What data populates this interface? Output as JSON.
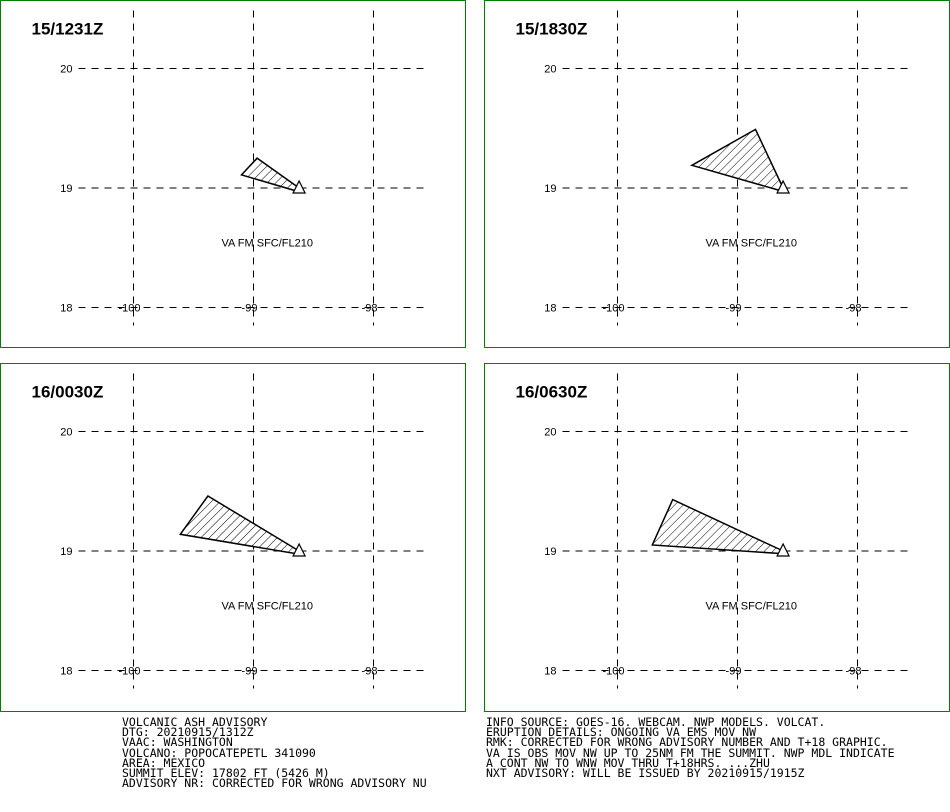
{
  "axes": {
    "lon_ticks": [
      -100,
      -99,
      -98
    ],
    "lat_ticks": [
      20,
      19,
      18
    ],
    "lon_labels": [
      "-100",
      "-99",
      "-98"
    ],
    "lat_labels": [
      "20",
      "19",
      "18"
    ]
  },
  "volcano_location": {
    "lat": 19.0,
    "lon": -98.62
  },
  "panels": [
    {
      "time": "15/1231Z",
      "va_label": "VA FM SFC/FL210",
      "polygon": [
        [
          -98.62,
          19.0
        ],
        [
          -98.97,
          19.25
        ],
        [
          -99.1,
          19.11
        ],
        [
          -98.66,
          18.98
        ]
      ]
    },
    {
      "time": "15/1830Z",
      "va_label": "VA FM SFC/FL210",
      "polygon": [
        [
          -98.62,
          19.0
        ],
        [
          -98.85,
          19.49
        ],
        [
          -99.38,
          19.19
        ],
        [
          -98.65,
          18.98
        ]
      ]
    },
    {
      "time": "16/0030Z",
      "va_label": "VA FM SFC/FL210",
      "polygon": [
        [
          -98.62,
          19.0
        ],
        [
          -99.38,
          19.46
        ],
        [
          -99.61,
          19.14
        ],
        [
          -98.66,
          18.98
        ]
      ]
    },
    {
      "time": "16/0630Z",
      "va_label": "VA FM SFC/FL210",
      "polygon": [
        [
          -98.62,
          19.0
        ],
        [
          -99.54,
          19.43
        ],
        [
          -99.71,
          19.05
        ],
        [
          -98.66,
          18.98
        ]
      ]
    }
  ],
  "advisory_left": [
    "VOLCANIC ASH ADVISORY",
    "DTG: 20210915/1312Z",
    "VAAC: WASHINGTON",
    "VOLCANO: POPOCATEPETL 341090",
    "AREA: MEXICO",
    "SUMMIT ELEV: 17802 FT (5426 M)",
    "ADVISORY NR: CORRECTED FOR WRONG ADVISORY NU"
  ],
  "advisory_right": [
    "INFO SOURCE: GOES-16. WEBCAM. NWP MODELS. VOLCAT.",
    "ERUPTION DETAILS: ONGOING VA EMS MOV NW",
    "RMK: CORRECTED FOR WRONG ADVISORY NUMBER AND T+18 GRAPHIC.",
    "VA IS OBS MOV NW UP TO 25NM FM THE SUMMIT. NWP MDL INDICATE",
    "A CONT NW TO WNW MOV THRU T+18HRS. ...ZHU",
    "NXT ADVISORY: WILL BE ISSUED BY 20210915/1915Z"
  ]
}
